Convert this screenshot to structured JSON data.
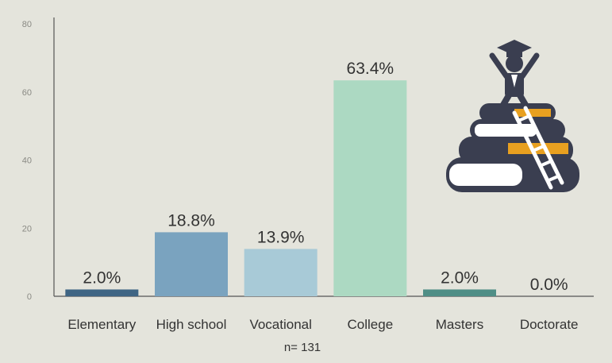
{
  "chart_data": {
    "type": "bar",
    "categories": [
      "Elementary",
      "High school",
      "Vocational",
      "College",
      "Masters",
      "Doctorate"
    ],
    "values": [
      2.0,
      18.8,
      13.9,
      63.4,
      2.0,
      0.0
    ],
    "data_labels": [
      "2.0%",
      "18.8%",
      "13.9%",
      "63.4%",
      "2.0%",
      "0.0%"
    ],
    "bar_colors": [
      "#3f6584",
      "#7aa3bf",
      "#a8cad7",
      "#acd9c2",
      "#4f8e86",
      "#5a5a5a"
    ],
    "ylim": [
      0,
      80
    ],
    "yticks": [
      0,
      20,
      40,
      60,
      80
    ],
    "title": "",
    "xlabel": "",
    "ylabel": "",
    "note": "n= 131",
    "grid": false,
    "legend": "none"
  },
  "decoration": {
    "icon": "graduate-on-books-icon",
    "colors": {
      "dark": "#3a3e50",
      "accent": "#e8a020",
      "ladder": "#ffffff"
    }
  }
}
